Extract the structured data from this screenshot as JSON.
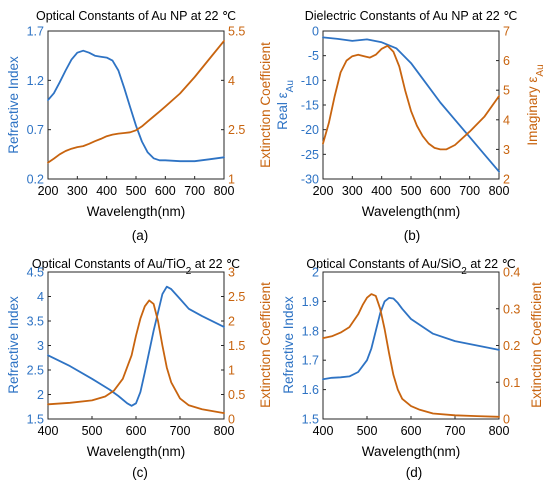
{
  "colors": {
    "blue": "#2e73c4",
    "orange": "#c8640f",
    "axis": "#262626"
  },
  "chart_data": [
    {
      "type": "line",
      "panel_label": "(a)",
      "title": "Optical Constants of Au NP at 22 ℃",
      "xlabel": "Wavelength(nm)",
      "xlim": [
        200,
        800
      ],
      "xticks": [
        200,
        300,
        400,
        500,
        600,
        700,
        800
      ],
      "left_axis": {
        "label": "Refractive Index",
        "ylim": [
          0.2,
          1.7
        ],
        "ticks": [
          0.2,
          0.7,
          1.2,
          1.7
        ],
        "tick_labels": [
          "0.2",
          "0.7",
          "1.2",
          "1.7"
        ]
      },
      "right_axis": {
        "label": "Extinction Coefficient",
        "ylim": [
          1,
          5.5
        ],
        "ticks": [
          1,
          2.5,
          4,
          5.5
        ],
        "tick_labels": [
          "1",
          "2.5",
          "4",
          "5.5"
        ]
      },
      "series": [
        {
          "axis": "left",
          "color": "#2e73c4",
          "x": [
            200,
            220,
            240,
            260,
            280,
            300,
            320,
            340,
            360,
            380,
            400,
            420,
            440,
            460,
            480,
            500,
            520,
            540,
            560,
            580,
            600,
            650,
            700,
            750,
            800
          ],
          "y": [
            1.0,
            1.07,
            1.18,
            1.3,
            1.41,
            1.48,
            1.5,
            1.48,
            1.45,
            1.44,
            1.43,
            1.4,
            1.3,
            1.12,
            0.93,
            0.74,
            0.58,
            0.47,
            0.41,
            0.39,
            0.39,
            0.38,
            0.38,
            0.4,
            0.42
          ]
        },
        {
          "axis": "right",
          "color": "#c8640f",
          "x": [
            200,
            220,
            240,
            260,
            280,
            300,
            320,
            340,
            360,
            380,
            400,
            420,
            440,
            460,
            480,
            500,
            520,
            540,
            560,
            580,
            600,
            650,
            700,
            750,
            800
          ],
          "y": [
            1.5,
            1.62,
            1.75,
            1.85,
            1.92,
            1.97,
            2.0,
            2.07,
            2.15,
            2.22,
            2.3,
            2.35,
            2.38,
            2.4,
            2.42,
            2.48,
            2.6,
            2.75,
            2.9,
            3.05,
            3.2,
            3.6,
            4.1,
            4.65,
            5.2
          ]
        }
      ]
    },
    {
      "type": "line",
      "panel_label": "(b)",
      "title": "Dielectric Constants of Au NP at 22 ℃",
      "xlabel": "Wavelength(nm)",
      "xlim": [
        200,
        800
      ],
      "xticks": [
        200,
        300,
        400,
        500,
        600,
        700,
        800
      ],
      "left_axis": {
        "label_main": "Real ε",
        "label_sub": "Au",
        "ylim": [
          -30,
          0
        ],
        "ticks": [
          -30,
          -25,
          -20,
          -15,
          -10,
          -5,
          0
        ],
        "tick_labels": [
          "-30",
          "-25",
          "-20",
          "-15",
          "-10",
          "-5",
          "0"
        ]
      },
      "right_axis": {
        "label_main": "Imaginary ε",
        "label_sub": "Au",
        "ylim": [
          2,
          7
        ],
        "ticks": [
          2,
          3,
          4,
          5,
          6,
          7
        ],
        "tick_labels": [
          "2",
          "3",
          "4",
          "5",
          "6",
          "7"
        ]
      },
      "series": [
        {
          "axis": "left",
          "color": "#2e73c4",
          "x": [
            200,
            250,
            300,
            350,
            400,
            450,
            500,
            550,
            600,
            650,
            700,
            750,
            800
          ],
          "y": [
            -1.3,
            -1.6,
            -2.0,
            -1.7,
            -2.3,
            -3.5,
            -6.5,
            -10.5,
            -14.5,
            -18.0,
            -21.5,
            -25.0,
            -28.5
          ]
        },
        {
          "axis": "right",
          "color": "#c8640f",
          "x": [
            200,
            220,
            240,
            260,
            280,
            300,
            320,
            340,
            360,
            380,
            400,
            420,
            440,
            460,
            480,
            500,
            520,
            540,
            560,
            580,
            600,
            620,
            650,
            700,
            750,
            800
          ],
          "y": [
            3.2,
            3.9,
            4.8,
            5.6,
            6.0,
            6.15,
            6.2,
            6.15,
            6.1,
            6.2,
            6.4,
            6.5,
            6.3,
            5.8,
            5.0,
            4.3,
            3.8,
            3.45,
            3.2,
            3.05,
            3.0,
            3.0,
            3.15,
            3.6,
            4.1,
            4.8
          ]
        }
      ]
    },
    {
      "type": "line",
      "panel_label": "(c)",
      "title_pre": "Optical Constants of Au/TiO",
      "title_sub": "2",
      "title_post": " at 22 ℃",
      "xlabel": "Wavelength(nm)",
      "xlim": [
        400,
        800
      ],
      "xticks": [
        400,
        500,
        600,
        700,
        800
      ],
      "left_axis": {
        "label": "Refractive Index",
        "ylim": [
          1.5,
          4.5
        ],
        "ticks": [
          1.5,
          2,
          2.5,
          3,
          3.5,
          4,
          4.5
        ],
        "tick_labels": [
          "1.5",
          "2",
          "2.5",
          "3",
          "3.5",
          "4",
          "4.5"
        ]
      },
      "right_axis": {
        "label": "Extinction Coefficient",
        "ylim": [
          0,
          3
        ],
        "ticks": [
          0,
          0.5,
          1,
          1.5,
          2,
          2.5,
          3
        ],
        "tick_labels": [
          "0",
          "0.5",
          "1",
          "1.5",
          "2",
          "2.5",
          "3"
        ]
      },
      "series": [
        {
          "axis": "left",
          "color": "#2e73c4",
          "x": [
            400,
            450,
            500,
            540,
            560,
            580,
            590,
            600,
            610,
            620,
            640,
            660,
            670,
            680,
            700,
            720,
            750,
            800
          ],
          "y": [
            2.8,
            2.58,
            2.32,
            2.1,
            1.97,
            1.82,
            1.77,
            1.82,
            2.05,
            2.45,
            3.3,
            4.05,
            4.2,
            4.15,
            3.95,
            3.75,
            3.6,
            3.38
          ]
        },
        {
          "axis": "right",
          "color": "#c8640f",
          "x": [
            400,
            450,
            500,
            530,
            550,
            570,
            590,
            600,
            610,
            620,
            630,
            640,
            650,
            660,
            670,
            680,
            700,
            720,
            750,
            800
          ],
          "y": [
            0.3,
            0.33,
            0.38,
            0.46,
            0.58,
            0.82,
            1.3,
            1.7,
            2.05,
            2.3,
            2.42,
            2.35,
            2.0,
            1.5,
            1.05,
            0.75,
            0.42,
            0.28,
            0.2,
            0.12
          ]
        }
      ]
    },
    {
      "type": "line",
      "panel_label": "(d)",
      "title_pre": "Optical Constants of Au/SiO",
      "title_sub": "2",
      "title_post": " at 22 ℃",
      "xlabel": "Wavelength(nm)",
      "xlim": [
        400,
        800
      ],
      "xticks": [
        400,
        500,
        600,
        700,
        800
      ],
      "left_axis": {
        "label": "Refractive Index",
        "ylim": [
          1.5,
          2.0
        ],
        "ticks": [
          1.5,
          1.6,
          1.7,
          1.8,
          1.9,
          2.0
        ],
        "tick_labels": [
          "1.5",
          "1.6",
          "1.7",
          "1.8",
          "1.9",
          "2"
        ]
      },
      "right_axis": {
        "label": "Extinction Coefficient",
        "ylim": [
          0,
          0.4
        ],
        "ticks": [
          0,
          0.1,
          0.2,
          0.3,
          0.4
        ],
        "tick_labels": [
          "0",
          "0.1",
          "0.2",
          "0.3",
          "0.4"
        ]
      },
      "series": [
        {
          "axis": "left",
          "color": "#2e73c4",
          "x": [
            400,
            420,
            440,
            460,
            480,
            500,
            510,
            520,
            530,
            540,
            550,
            560,
            570,
            580,
            600,
            650,
            700,
            750,
            800
          ],
          "y": [
            1.635,
            1.64,
            1.642,
            1.645,
            1.66,
            1.7,
            1.74,
            1.8,
            1.86,
            1.9,
            1.912,
            1.91,
            1.895,
            1.875,
            1.84,
            1.79,
            1.765,
            1.75,
            1.735
          ]
        },
        {
          "axis": "right",
          "color": "#c8640f",
          "x": [
            400,
            420,
            440,
            460,
            480,
            490,
            500,
            510,
            520,
            530,
            540,
            550,
            560,
            570,
            580,
            600,
            620,
            650,
            700,
            750,
            800
          ],
          "y": [
            0.22,
            0.225,
            0.235,
            0.25,
            0.285,
            0.31,
            0.33,
            0.34,
            0.335,
            0.3,
            0.245,
            0.18,
            0.12,
            0.08,
            0.055,
            0.035,
            0.025,
            0.015,
            0.01,
            0.008,
            0.006
          ]
        }
      ]
    }
  ]
}
